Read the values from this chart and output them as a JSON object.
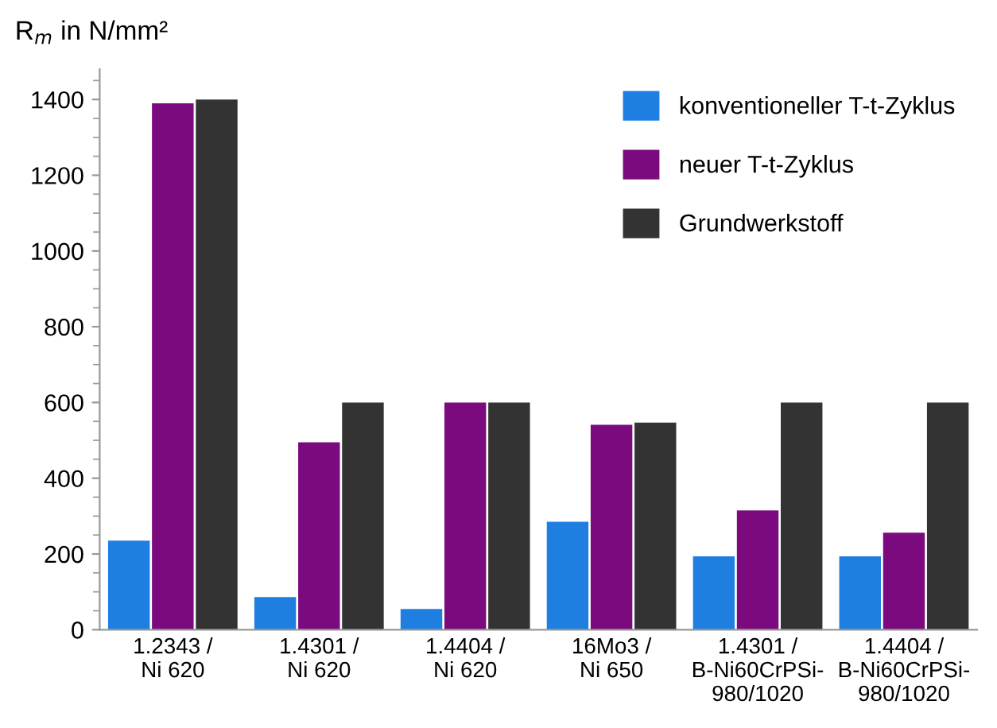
{
  "chart_data": {
    "type": "bar",
    "ylabel": "R$_{m}$ in N/mm²",
    "categories": [
      "1.2343 /\nNi 620",
      "1.4301 /\nNi 620",
      "1.4404 /\nNi 620",
      "16Mo3 /\nNi 650",
      "1.4301 /\nB-Ni60CrPSi-\n980/1020",
      "1.4404 /\nB-Ni60CrPSi-\n980/1020"
    ],
    "series": [
      {
        "name": "konventioneller T-t-Zyklus",
        "color": "#1e7fe0",
        "values": [
          235,
          86,
          55,
          285,
          194,
          194
        ]
      },
      {
        "name": "neuer T-t-Zyklus",
        "color": "#7b0a7e",
        "values": [
          1390,
          495,
          600,
          541,
          315,
          256
        ]
      },
      {
        "name": "Grundwerkstoff",
        "color": "#333333",
        "values": [
          1400,
          600,
          600,
          547,
          600,
          600
        ]
      }
    ],
    "ylim": [
      0,
      1480
    ],
    "yticks": [
      0,
      200,
      400,
      600,
      800,
      1000,
      1200,
      1400
    ],
    "grid": false,
    "legend": "top right"
  }
}
